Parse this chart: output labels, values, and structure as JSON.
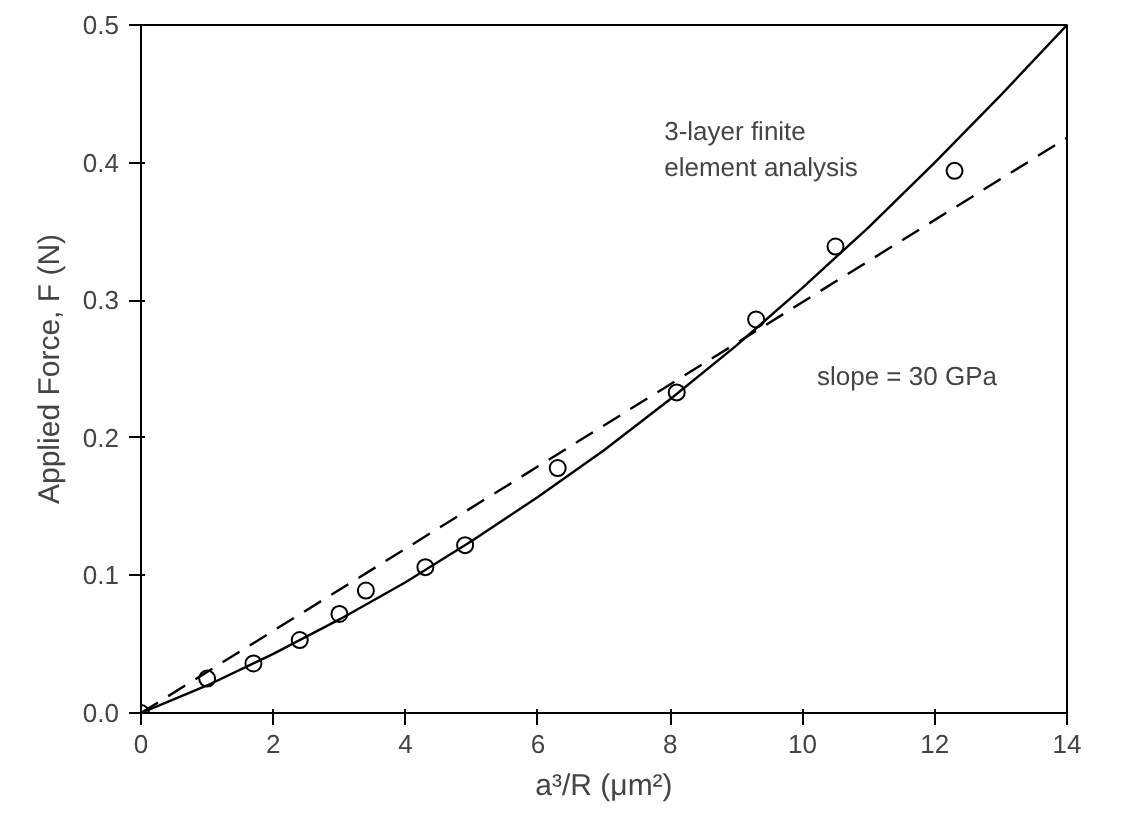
{
  "chart_data": {
    "type": "scatter",
    "xlabel": "a³/R (μm²)",
    "ylabel": "Applied Force, F (N)",
    "xlim": [
      0,
      14
    ],
    "ylim": [
      0,
      0.5
    ],
    "xticks": [
      0,
      2,
      4,
      6,
      8,
      10,
      12,
      14
    ],
    "yticks": [
      {
        "value": 0,
        "label": "0.0"
      },
      {
        "value": 0.1,
        "label": "0.1"
      },
      {
        "value": 0.2,
        "label": "0.2"
      },
      {
        "value": 0.3,
        "label": "0.3"
      },
      {
        "value": 0.4,
        "label": "0.4"
      },
      {
        "value": 0.5,
        "label": "0.5"
      }
    ],
    "grid": false,
    "annotations": [
      "3-layer finite\nelement analysis",
      "slope = 30 GPa"
    ],
    "series": [
      {
        "marker": "circle",
        "color": "#000000",
        "x": [
          0,
          1,
          1.7,
          2.4,
          3,
          3.4,
          4.3,
          4.9,
          6.3,
          8.1,
          9.3,
          10.5,
          12.3
        ],
        "values": [
          0,
          0.025,
          0.036,
          0.053,
          0.072,
          0.089,
          0.106,
          0.122,
          0.178,
          0.233,
          0.286,
          0.339,
          0.394
        ]
      },
      {
        "type": "line",
        "line_style": "solid",
        "color": "#000000",
        "x": [
          0,
          1,
          2,
          3,
          4,
          5,
          6,
          7,
          8,
          9,
          10,
          11,
          12,
          13,
          14
        ],
        "values": [
          0,
          0.02,
          0.043,
          0.068,
          0.095,
          0.125,
          0.157,
          0.191,
          0.228,
          0.267,
          0.309,
          0.353,
          0.4,
          0.449,
          0.5
        ]
      },
      {
        "type": "line",
        "line_style": "dashed",
        "color": "#000000",
        "x": [
          0,
          14
        ],
        "values": [
          0,
          0.418
        ]
      }
    ]
  }
}
